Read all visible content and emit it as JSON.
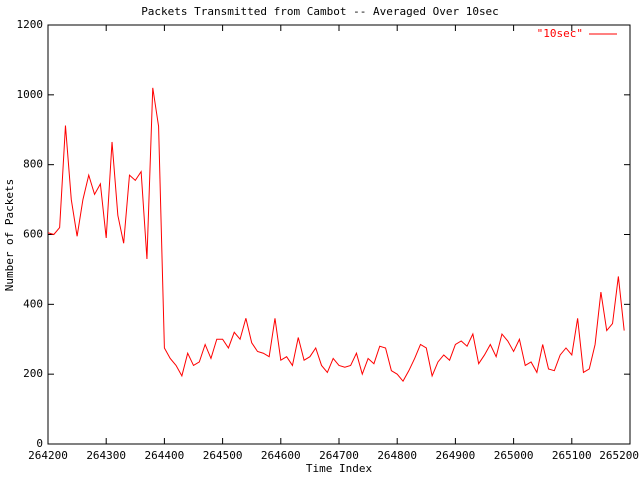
{
  "chart_data": {
    "type": "line",
    "title": "Packets Transmitted from Cambot -- Averaged Over 10sec",
    "xlabel": "Time Index",
    "ylabel": "Number of Packets",
    "x": [
      264200,
      264210,
      264220,
      264230,
      264240,
      264250,
      264260,
      264270,
      264280,
      264290,
      264300,
      264310,
      264320,
      264330,
      264340,
      264350,
      264360,
      264370,
      264380,
      264390,
      264400,
      264410,
      264420,
      264430,
      264440,
      264450,
      264460,
      264470,
      264480,
      264490,
      264500,
      264510,
      264520,
      264530,
      264540,
      264550,
      264560,
      264570,
      264580,
      264590,
      264600,
      264610,
      264620,
      264630,
      264640,
      264650,
      264660,
      264670,
      264680,
      264690,
      264700,
      264710,
      264720,
      264730,
      264740,
      264750,
      264760,
      264770,
      264780,
      264790,
      264800,
      264810,
      264820,
      264830,
      264840,
      264850,
      264860,
      264870,
      264880,
      264890,
      264900,
      264910,
      264920,
      264930,
      264940,
      264950,
      264960,
      264970,
      264980,
      264990,
      265000,
      265010,
      265020,
      265030,
      265040,
      265050,
      265060,
      265070,
      265080,
      265090,
      265100,
      265110,
      265120,
      265130,
      265140,
      265150,
      265160,
      265170,
      265180,
      265190
    ],
    "series": [
      {
        "name": "\"10sec\"",
        "color": "#ff0000",
        "values": [
          605,
          600,
          620,
          912,
          700,
          595,
          700,
          770,
          715,
          745,
          590,
          865,
          655,
          575,
          770,
          755,
          780,
          530,
          1020,
          910,
          275,
          245,
          225,
          195,
          260,
          225,
          235,
          285,
          245,
          300,
          300,
          275,
          320,
          300,
          360,
          290,
          265,
          260,
          250,
          360,
          240,
          250,
          225,
          305,
          240,
          250,
          275,
          225,
          205,
          245,
          225,
          220,
          225,
          260,
          200,
          245,
          230,
          280,
          275,
          210,
          200,
          180,
          210,
          245,
          285,
          275,
          195,
          235,
          255,
          240,
          285,
          295,
          280,
          315,
          230,
          255,
          285,
          250,
          315,
          295,
          265,
          300,
          225,
          235,
          205,
          285,
          215,
          210,
          255,
          275,
          255,
          360,
          205,
          215,
          285,
          435,
          325,
          345,
          480,
          325
        ]
      }
    ],
    "xlim": [
      264200,
      265200
    ],
    "xticks": [
      264200,
      264300,
      264400,
      264500,
      264600,
      264700,
      264800,
      264900,
      265000,
      265100,
      265200
    ],
    "ylim": [
      0,
      1200
    ],
    "yticks": [
      0,
      200,
      400,
      600,
      800,
      1000,
      1200
    ],
    "legend": "top-right",
    "grid": false
  }
}
